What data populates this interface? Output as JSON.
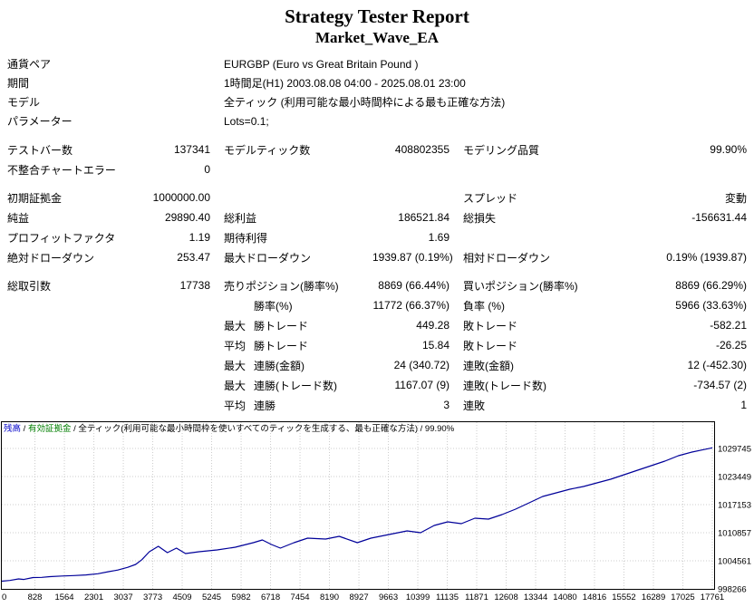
{
  "header": {
    "title": "Strategy Tester Report",
    "subtitle": "Market_Wave_EA"
  },
  "info": [
    {
      "label": "通貨ペア",
      "value": "EURGBP (Euro vs Great Britain Pound )"
    },
    {
      "label": "期間",
      "value": "1時間足(H1) 2003.08.08 04:00 - 2025.08.01 23:00"
    },
    {
      "label": "モデル",
      "value": "全ティック (利用可能な最小時間枠による最も正確な方法)"
    },
    {
      "label": "パラメーター",
      "value": "Lots=0.1;"
    }
  ],
  "sections": [
    {
      "rows": [
        {
          "c1": "テストバー数",
          "v1": "137341",
          "span": true,
          "c2": "モデルティック数",
          "v2": "408802355",
          "c3": "モデリング品質",
          "v3": "99.90%"
        },
        {
          "c1": "不整合チャートエラー",
          "v1": "0",
          "span": true,
          "c2": "",
          "v2": "",
          "c3": "",
          "v3": ""
        }
      ]
    },
    {
      "rows": [
        {
          "c1": "初期証拠金",
          "v1": "1000000.00",
          "span": true,
          "c2": "",
          "v2": "",
          "c3": "スプレッド",
          "v3": "変動"
        },
        {
          "c1": "純益",
          "v1": "29890.40",
          "span": true,
          "c2": "総利益",
          "v2": "186521.84",
          "c3": "総損失",
          "v3": "-156631.44"
        },
        {
          "c1": "プロフィットファクタ",
          "v1": "1.19",
          "span": true,
          "c2": "期待利得",
          "v2": "1.69",
          "c3": "",
          "v3": ""
        },
        {
          "c1": "絶対ドローダウン",
          "v1": "253.47",
          "span": true,
          "c2": "最大ドローダウン",
          "v2": "1939.87 (0.19%)",
          "c3": "相対ドローダウン",
          "v3": "0.19% (1939.87)"
        }
      ]
    },
    {
      "rows": [
        {
          "c1": "総取引数",
          "v1": "17738",
          "span": true,
          "c2": "売りポジション(勝率%)",
          "v2": "8869 (66.44%)",
          "c3": "買いポジション(勝率%)",
          "v3": "8869 (66.29%)"
        },
        {
          "c1": "",
          "v1": "",
          "span": false,
          "p": "",
          "c2": "勝率(%)",
          "v2": "11772 (66.37%)",
          "c3": "負率 (%)",
          "v3": "5966 (33.63%)"
        },
        {
          "c1": "",
          "v1": "",
          "span": false,
          "p": "最大",
          "c2": "勝トレード",
          "v2": "449.28",
          "c3": "敗トレード",
          "v3": "-582.21"
        },
        {
          "c1": "",
          "v1": "",
          "span": false,
          "p": "平均",
          "c2": "勝トレード",
          "v2": "15.84",
          "c3": "敗トレード",
          "v3": "-26.25"
        },
        {
          "c1": "",
          "v1": "",
          "span": false,
          "p": "最大",
          "c2": "連勝(金額)",
          "v2": "24 (340.72)",
          "c3": "連敗(金額)",
          "v3": "12 (-452.30)"
        },
        {
          "c1": "",
          "v1": "",
          "span": false,
          "p": "最大",
          "c2": "連勝(トレード数)",
          "v2": "1167.07 (9)",
          "c3": "連敗(トレード数)",
          "v3": "-734.57 (2)"
        },
        {
          "c1": "",
          "v1": "",
          "span": false,
          "p": "平均",
          "c2": "連勝",
          "v2": "3",
          "c3": "連敗",
          "v3": "1"
        }
      ]
    }
  ],
  "chart": {
    "legend_segments": [
      {
        "text": "残高",
        "color": "#0000c8"
      },
      {
        "text": " / ",
        "color": "#000000"
      },
      {
        "text": "有効証拠金",
        "color": "#007f00"
      },
      {
        "text": " / 全ティック(利用可能な最小時間枠を使いすべてのティックを生成する、最も正確な方法) / 99.90%",
        "color": "#000000"
      }
    ],
    "line_color": "#000099",
    "grid_color": "#cccccc",
    "border_color": "#000000"
  },
  "chart_data": {
    "type": "line",
    "title": "残高 / 有効証拠金 / 全ティック(利用可能な最小時間枠を使いすべてのティックを生成する、最も正確な方法) / 99.90%",
    "legend": [
      "残高",
      "有効証拠金"
    ],
    "grid": true,
    "legend_position": "top-left",
    "xlim": [
      0,
      17761
    ],
    "ylim": [
      998266,
      1035836
    ],
    "x_ticks": [
      0,
      828,
      1564,
      2301,
      3037,
      3773,
      4509,
      5245,
      5982,
      6718,
      7454,
      8190,
      8927,
      9663,
      10399,
      11135,
      11871,
      12608,
      13344,
      14080,
      14816,
      15552,
      16289,
      17025,
      17761
    ],
    "y_ticks": [
      998266,
      1004561,
      1010857,
      1017153,
      1023449,
      1029745
    ],
    "series": [
      {
        "name": "残高",
        "points": [
          [
            0,
            1000000
          ],
          [
            200,
            1000150
          ],
          [
            420,
            1000500
          ],
          [
            550,
            1000380
          ],
          [
            780,
            1000800
          ],
          [
            1000,
            1000850
          ],
          [
            1200,
            1001000
          ],
          [
            1500,
            1001150
          ],
          [
            1800,
            1001250
          ],
          [
            2100,
            1001400
          ],
          [
            2400,
            1001650
          ],
          [
            2669,
            1002120
          ],
          [
            2900,
            1002500
          ],
          [
            3150,
            1003100
          ],
          [
            3347,
            1003750
          ],
          [
            3500,
            1004800
          ],
          [
            3687,
            1006590
          ],
          [
            3913,
            1007810
          ],
          [
            4139,
            1006390
          ],
          [
            4365,
            1007400
          ],
          [
            4591,
            1006190
          ],
          [
            4930,
            1006590
          ],
          [
            5383,
            1007000
          ],
          [
            5835,
            1007610
          ],
          [
            6287,
            1008620
          ],
          [
            6513,
            1009230
          ],
          [
            6739,
            1008220
          ],
          [
            6965,
            1007400
          ],
          [
            7304,
            1008620
          ],
          [
            7643,
            1009640
          ],
          [
            8095,
            1009440
          ],
          [
            8434,
            1010040
          ],
          [
            8887,
            1008620
          ],
          [
            9226,
            1009640
          ],
          [
            9678,
            1010450
          ],
          [
            10130,
            1011260
          ],
          [
            10469,
            1010860
          ],
          [
            10808,
            1012480
          ],
          [
            11147,
            1013300
          ],
          [
            11487,
            1012890
          ],
          [
            11826,
            1014110
          ],
          [
            12165,
            1013900
          ],
          [
            12504,
            1014920
          ],
          [
            12843,
            1016140
          ],
          [
            13182,
            1017560
          ],
          [
            13521,
            1018980
          ],
          [
            13861,
            1019790
          ],
          [
            14200,
            1020610
          ],
          [
            14539,
            1021220
          ],
          [
            14878,
            1022030
          ],
          [
            15217,
            1022840
          ],
          [
            15556,
            1023860
          ],
          [
            15895,
            1024870
          ],
          [
            16234,
            1025890
          ],
          [
            16573,
            1026900
          ],
          [
            16913,
            1028120
          ],
          [
            17252,
            1028930
          ],
          [
            17500,
            1029400
          ],
          [
            17761,
            1029890
          ]
        ]
      }
    ]
  }
}
